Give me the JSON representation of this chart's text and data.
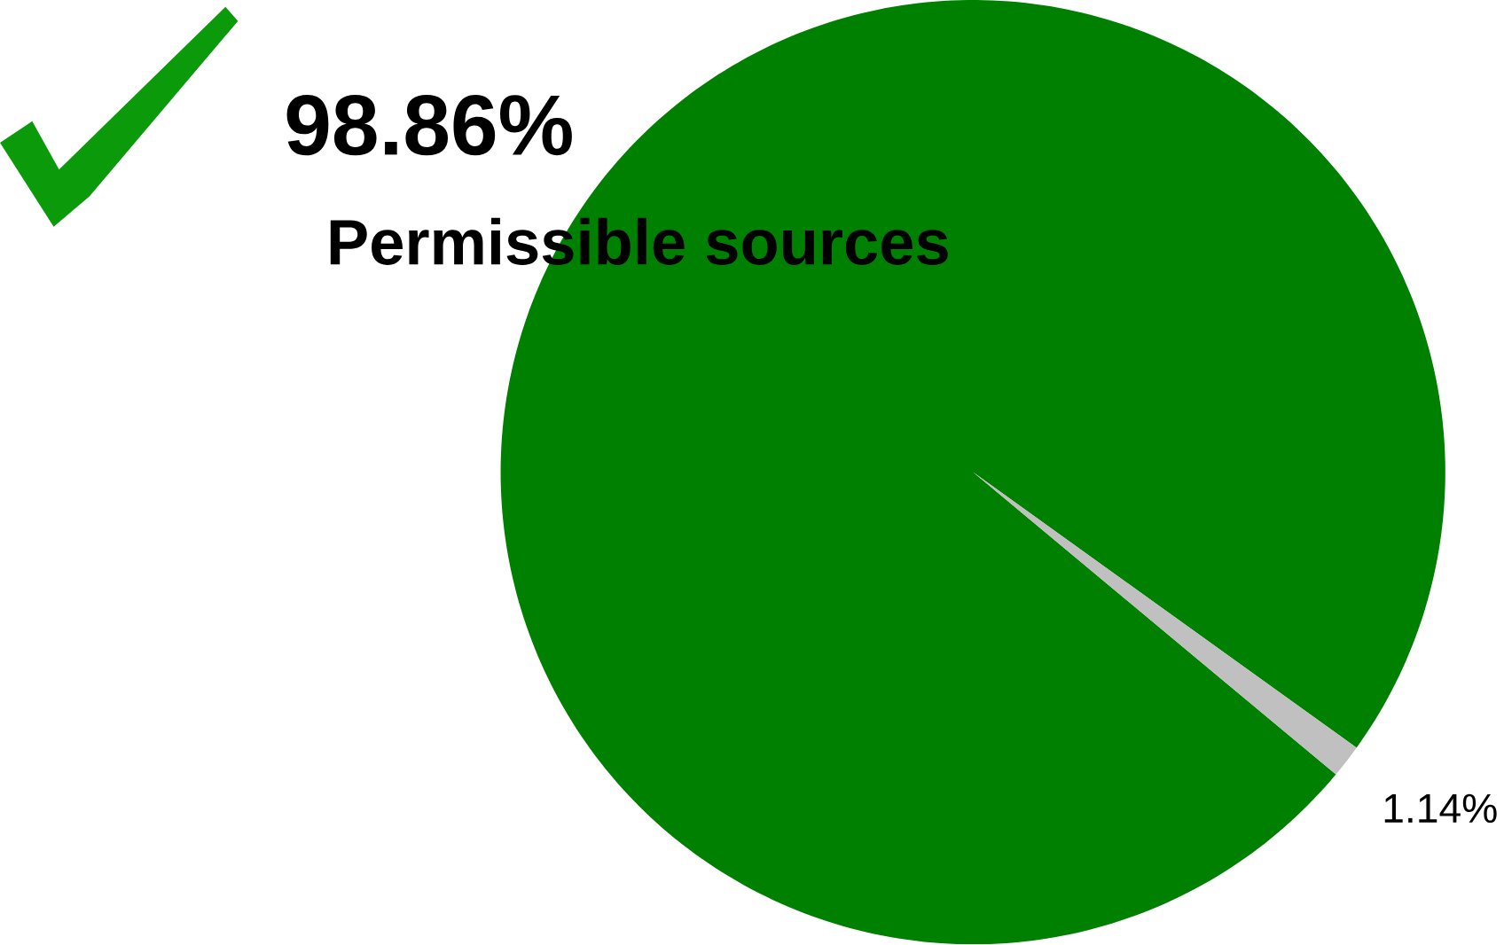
{
  "chart_data": {
    "type": "pie",
    "categories": [
      "Permissible sources",
      null
    ],
    "values": [
      98.86,
      1.14
    ],
    "value_labels": [
      "98.86%",
      "1.14%"
    ],
    "colors": [
      "#008000",
      "#c0c0c0"
    ]
  }
}
